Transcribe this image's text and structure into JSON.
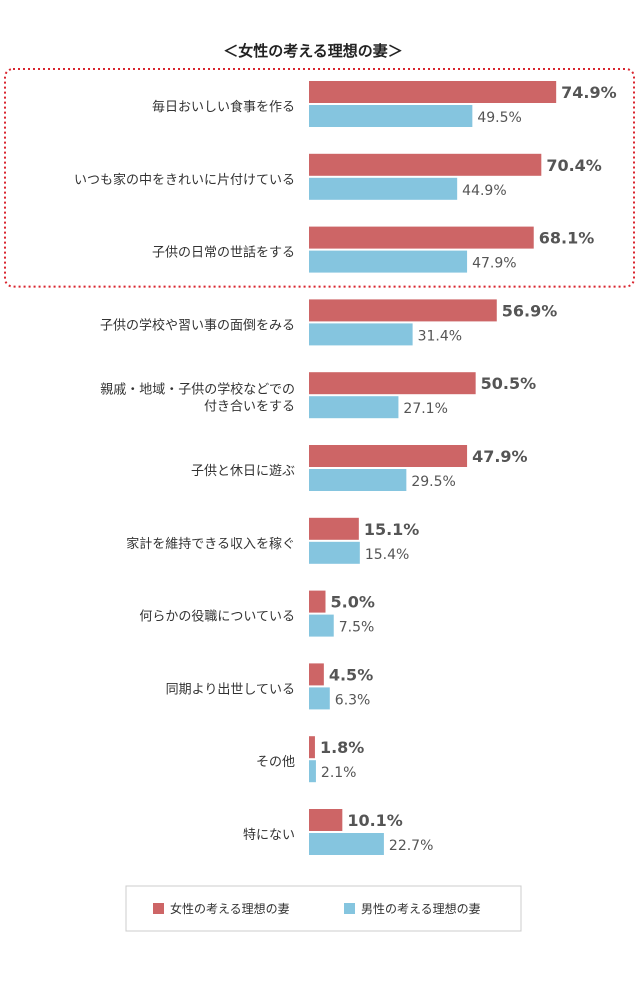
{
  "chart_data": {
    "type": "bar",
    "orientation": "horizontal",
    "title": "＜女性の考える理想の妻＞",
    "categories": [
      [
        "毎日おいしい食事を作る"
      ],
      [
        "いつも家の中をきれいに片付けている"
      ],
      [
        "子供の日常の世話をする"
      ],
      [
        "子供の学校や習い事の面倒をみる"
      ],
      [
        "親戚・地域・子供の学校などでの",
        "付き合いをする"
      ],
      [
        "子供と休日に遊ぶ"
      ],
      [
        "家計を維持できる収入を稼ぐ"
      ],
      [
        "何らかの役職についている"
      ],
      [
        "同期より出世している"
      ],
      [
        "その他"
      ],
      [
        "特にない"
      ]
    ],
    "series": [
      {
        "name": "女性の考える理想の妻",
        "color": "#cd6566",
        "values": [
          74.9,
          70.4,
          68.1,
          56.9,
          50.5,
          47.9,
          15.1,
          5.0,
          4.5,
          1.8,
          10.1
        ],
        "labels": [
          "74.9%",
          "70.4%",
          "68.1%",
          "56.9%",
          "50.5%",
          "47.9%",
          "15.1%",
          "5.0%",
          "4.5%",
          "1.8%",
          "10.1%"
        ]
      },
      {
        "name": "男性の考える理想の妻",
        "color": "#85c5df",
        "values": [
          49.5,
          44.9,
          47.9,
          31.4,
          27.1,
          29.5,
          15.4,
          7.5,
          6.3,
          2.1,
          22.7
        ],
        "labels": [
          "49.5%",
          "44.9%",
          "47.9%",
          "31.4%",
          "27.1%",
          "29.5%",
          "15.4%",
          "7.5%",
          "6.3%",
          "2.1%",
          "22.7%"
        ]
      }
    ],
    "highlight": {
      "categories": [
        0,
        1,
        2
      ],
      "color": "#d9252f",
      "style": "dotted"
    },
    "legend": {
      "position": "bottom"
    },
    "xlim": [
      0,
      100
    ],
    "grid": false
  }
}
